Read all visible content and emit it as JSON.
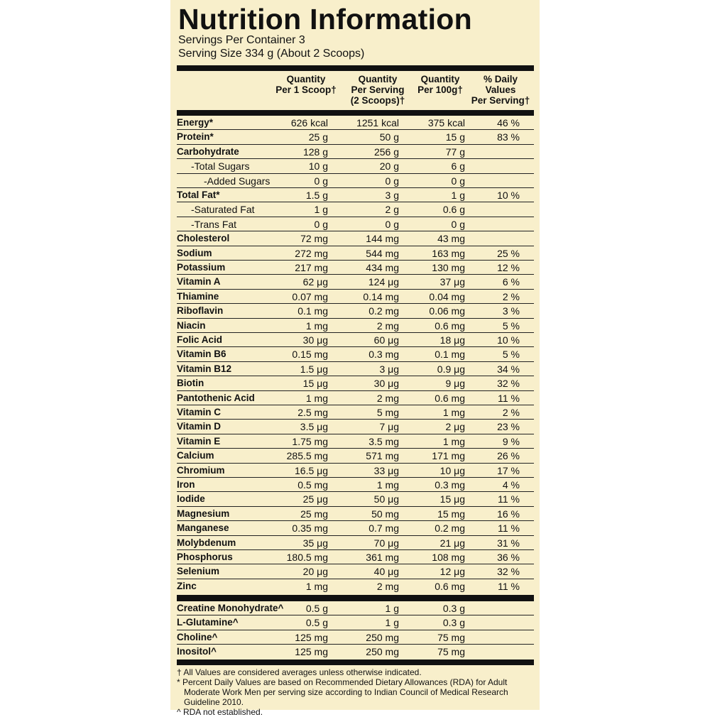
{
  "header": {
    "title": "Nutrition Information",
    "servings_per_container": "Servings Per Container 3",
    "serving_size": "Serving Size 334 g (About 2 Scoops)"
  },
  "table": {
    "columns": [
      [
        "Quantity",
        "Per 1 Scoop†"
      ],
      [
        "Quantity",
        "Per Serving",
        "(2 Scoops)†"
      ],
      [
        "Quantity",
        "Per 100g†"
      ],
      [
        "% Daily",
        "Values",
        "Per Serving†"
      ]
    ],
    "rows": [
      [
        "Energy*",
        "626 kcal",
        "1251 kcal",
        "375 kcal",
        "46 %"
      ],
      [
        "Protein*",
        "25 g",
        "50 g",
        "15 g",
        "83 %"
      ],
      [
        "Carbohydrate",
        "128 g",
        "256 g",
        "77 g"
      ],
      [
        "-Total Sugars",
        "10 g",
        "20 g",
        "6 g"
      ],
      [
        "-Added Sugars",
        "0 g",
        "0 g",
        "0 g"
      ],
      [
        "Total Fat*",
        "1.5 g",
        "3 g",
        "1 g",
        "10 %"
      ],
      [
        "-Saturated Fat",
        "1 g",
        "2 g",
        "0.6 g"
      ],
      [
        "-Trans Fat",
        "0 g",
        "0 g",
        "0 g"
      ],
      [
        "Cholesterol",
        "72 mg",
        "144 mg",
        "43 mg"
      ],
      [
        "Sodium",
        "272 mg",
        "544 mg",
        "163 mg",
        "25 %"
      ],
      [
        "Potassium",
        "217 mg",
        "434 mg",
        "130 mg",
        "12 %"
      ],
      [
        "Vitamin A",
        "62 μg",
        "124 μg",
        "37 μg",
        "6 %"
      ],
      [
        "Thiamine",
        "0.07 mg",
        "0.14 mg",
        "0.04 mg",
        "2 %"
      ],
      [
        "Riboflavin",
        "0.1 mg",
        "0.2 mg",
        "0.06 mg",
        "3 %"
      ],
      [
        "Niacin",
        "1 mg",
        "2 mg",
        "0.6 mg",
        "5 %"
      ],
      [
        "Folic Acid",
        "30 μg",
        "60 μg",
        "18 μg",
        "10 %"
      ],
      [
        "Vitamin B6",
        "0.15 mg",
        "0.3 mg",
        "0.1 mg",
        "5 %"
      ],
      [
        "Vitamin B12",
        "1.5 μg",
        "3 μg",
        "0.9 μg",
        "34 %"
      ],
      [
        "Biotin",
        "15 μg",
        "30 μg",
        "9 μg",
        "32 %"
      ],
      [
        "Pantothenic Acid",
        "1 mg",
        "2 mg",
        "0.6 mg",
        "11 %"
      ],
      [
        "Vitamin C",
        "2.5 mg",
        "5 mg",
        "1 mg",
        "2 %"
      ],
      [
        "Vitamin D",
        "3.5 μg",
        "7 μg",
        "2 μg",
        "23 %"
      ],
      [
        "Vitamin E",
        "1.75 mg",
        "3.5 mg",
        "1 mg",
        "9 %"
      ],
      [
        "Calcium",
        "285.5 mg",
        "571 mg",
        "171 mg",
        "26 %"
      ],
      [
        "Chromium",
        "16.5 μg",
        "33 μg",
        "10 μg",
        "17 %"
      ],
      [
        "Iron",
        "0.5 mg",
        "1 mg",
        "0.3 mg",
        "4 %"
      ],
      [
        "Iodide",
        "25 μg",
        "50 μg",
        "15 μg",
        "11 %"
      ],
      [
        "Magnesium",
        "25 mg",
        "50 mg",
        "15 mg",
        "16 %"
      ],
      [
        "Manganese",
        "0.35 mg",
        "0.7 mg",
        "0.2 mg",
        "11 %"
      ],
      [
        "Molybdenum",
        "35 μg",
        "70 μg",
        "21 μg",
        "31 %"
      ],
      [
        "Phosphorus",
        "180.5 mg",
        "361 mg",
        "108 mg",
        "36 %"
      ],
      [
        "Selenium",
        "20 μg",
        "40 μg",
        "12 μg",
        "32 %"
      ],
      [
        "Zinc",
        "1 mg",
        "2 mg",
        "0.6 mg",
        "11 %"
      ]
    ],
    "extra_rows": [
      [
        "Creatine Monohydrate^",
        "0.5 g",
        "1 g",
        "0.3 g"
      ],
      [
        "L-Glutamine^",
        "0.5 g",
        "1 g",
        "0.3 g"
      ],
      [
        "Choline^",
        "125 mg",
        "250 mg",
        "75 mg"
      ],
      [
        "Inositol^",
        "125 mg",
        "250 mg",
        "75 mg"
      ]
    ]
  },
  "footnotes": [
    "† All Values are considered averages unless otherwise indicated.",
    "* Percent Daily Values are based on Recommended Dietary Allowances (RDA) for Adult Moderate Work Men per serving size according to Indian Council of Medical Research Guideline 2010.",
    "^ RDA not established."
  ]
}
